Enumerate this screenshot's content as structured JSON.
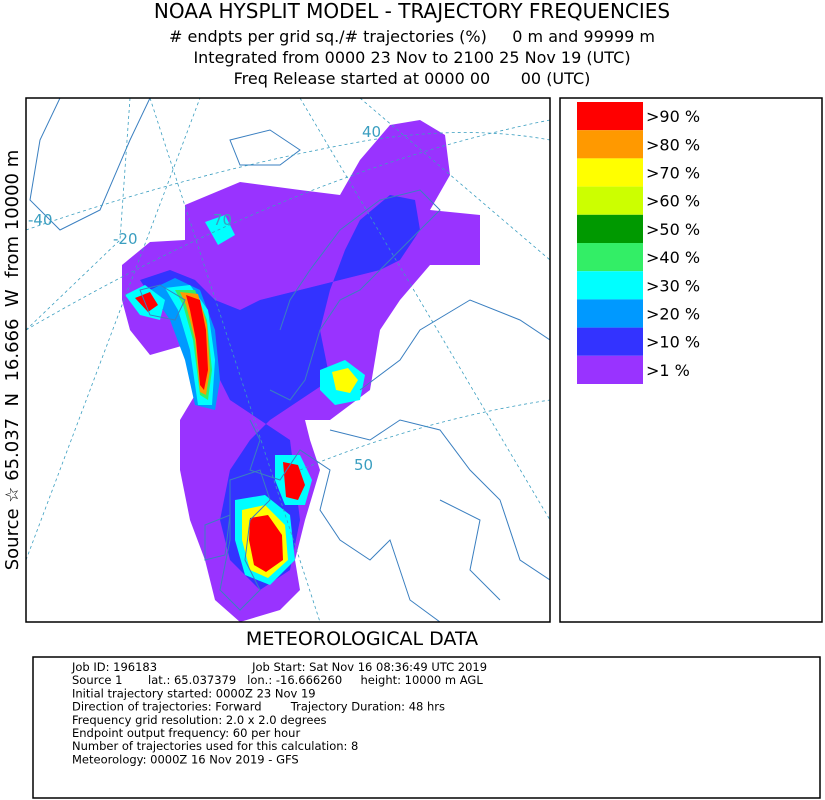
{
  "header": {
    "title": "NOAA HYSPLIT MODEL - TRAJECTORY FREQUENCIES",
    "lines": [
      "# endpts per grid sq./# trajectories (%)     0 m and 99999 m",
      "Integrated from 0000 23 Nov to 2100 25 Nov 19 (UTC)",
      "Freq Release started at 0000 00      00 (UTC)"
    ]
  },
  "side_label": "Source ☆ 65.037  N  16.666  W  from 10000 m",
  "map": {
    "labels": [
      "40",
      "-40",
      "-20",
      "70",
      "50"
    ]
  },
  "legend": {
    "items": [
      {
        "label": ">90 %",
        "color": "#ff0000"
      },
      {
        "label": ">80 %",
        "color": "#ff9900"
      },
      {
        "label": ">70 %",
        "color": "#ffff00"
      },
      {
        "label": ">60 %",
        "color": "#ccff00"
      },
      {
        "label": ">50 %",
        "color": "#009900"
      },
      {
        "label": ">40 %",
        "color": "#33ee66"
      },
      {
        "label": ">30 %",
        "color": "#00ffff"
      },
      {
        "label": ">20 %",
        "color": "#0099ff"
      },
      {
        "label": ">10 %",
        "color": "#3333ff"
      },
      {
        "label": ">1 %",
        "color": "#9933ff"
      }
    ]
  },
  "footer": {
    "title": "METEOROLOGICAL DATA"
  },
  "info": {
    "lines": [
      "Job ID: 196183                          Job Start: Sat Nov 16 08:36:49 UTC 2019",
      "Source 1       lat.: 65.037379   lon.: -16.666260     height: 10000 m AGL",
      "Initial trajectory started: 0000Z 23 Nov 19",
      "Direction of trajectories: Forward        Trajectory Duration: 48 hrs",
      "Frequency grid resolution: 2.0 x 2.0 degrees",
      "Endpoint output frequency: 60 per hour",
      "Number of trajectories used for this calculation: 8",
      "Meteorology: 0000Z 16 Nov 2019 - GFS"
    ]
  }
}
